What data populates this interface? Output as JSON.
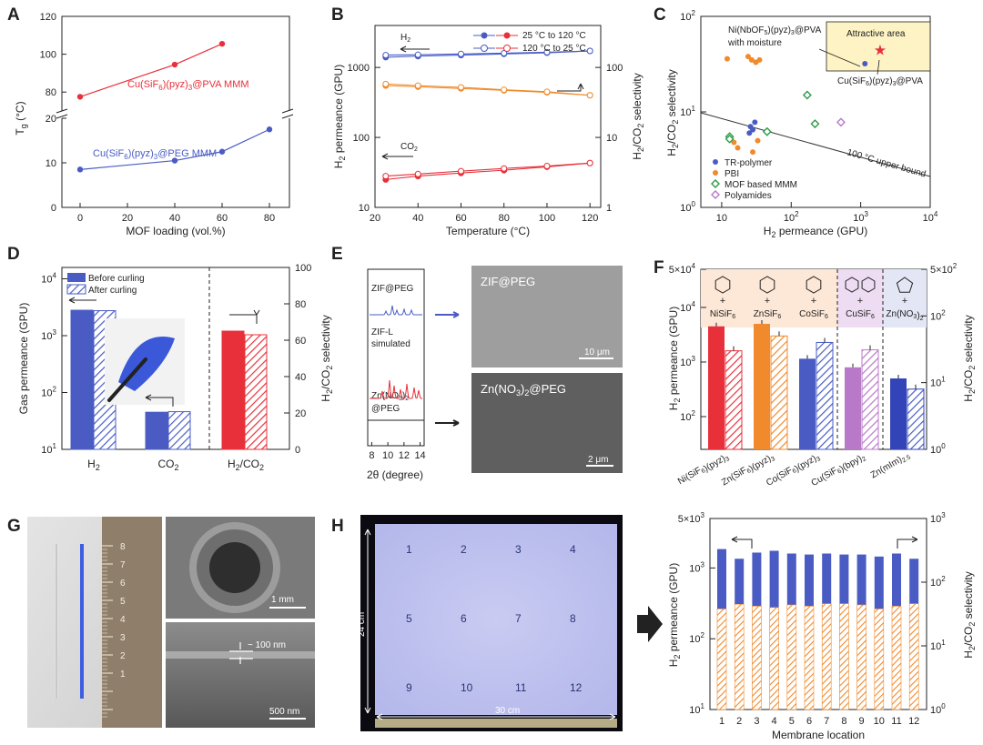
{
  "colors": {
    "blue": "#4a5cc4",
    "red": "#e8303a",
    "orange": "#f08a2c",
    "green": "#2e9b47",
    "purple": "#b87ac8",
    "panel_yellow": "#fdf3c4"
  },
  "panel_labels": [
    "A",
    "B",
    "C",
    "D",
    "E",
    "F",
    "G",
    "H"
  ],
  "chart_data": [
    {
      "id": "A",
      "type": "line",
      "xlabel": "MOF loading (vol.%)",
      "ylabel": "Tg (°C)",
      "x_ticks": [
        "0",
        "20",
        "40",
        "60",
        "80"
      ],
      "y_ticks_top": [
        "80",
        "100",
        "120"
      ],
      "y_ticks_bottom": [
        "0",
        "10",
        "20"
      ],
      "series": [
        {
          "name": "Cu(SiF6)(pyz)3@PVA MMM",
          "x": [
            0,
            40,
            60
          ],
          "y": [
            77.5,
            94.5,
            105.5
          ]
        },
        {
          "name": "Cu(SiF6)(pyz)3@PEG MMM",
          "x": [
            0,
            40,
            60,
            80
          ],
          "y": [
            8.5,
            10.5,
            12.5,
            17.5
          ]
        }
      ]
    },
    {
      "id": "B",
      "type": "line",
      "xlabel": "Temperature (°C)",
      "ylabel": "H2 permeance (GPU)",
      "ylabel2": "H2/CO2 selectivity",
      "x_ticks": [
        "20",
        "40",
        "60",
        "80",
        "100",
        "120"
      ],
      "y_ticks": [
        "10",
        "100",
        "1000"
      ],
      "y2_ticks": [
        "1",
        "10",
        "100"
      ],
      "legend": [
        "25 °C to 120 °C",
        "120 °C to 25 °C"
      ],
      "annotations": [
        "H2",
        "CO2"
      ],
      "series": [
        {
          "name": "H2 25→120",
          "x": [
            25,
            40,
            60,
            80,
            100,
            120
          ],
          "y": [
            1400,
            1450,
            1500,
            1560,
            1620,
            1720
          ]
        },
        {
          "name": "H2 120→25",
          "x": [
            25,
            40,
            60,
            80,
            100,
            120
          ],
          "y": [
            1500,
            1520,
            1560,
            1600,
            1650,
            1720
          ]
        },
        {
          "name": "CO2 25→120",
          "x": [
            25,
            40,
            60,
            80,
            100,
            120
          ],
          "y": [
            25,
            28,
            31,
            34,
            38,
            43
          ]
        },
        {
          "name": "CO2 120→25",
          "x": [
            25,
            40,
            60,
            80,
            100,
            120
          ],
          "y": [
            28,
            30,
            33,
            36,
            39,
            43
          ]
        },
        {
          "name": "Sel 25→120",
          "x": [
            25,
            40,
            60,
            80,
            100,
            120
          ],
          "y": [
            55,
            53,
            50,
            47,
            44,
            40
          ]
        },
        {
          "name": "Sel 120→25",
          "x": [
            25,
            40,
            60,
            80,
            100,
            120
          ],
          "y": [
            58,
            55,
            52,
            48,
            45,
            40
          ]
        }
      ]
    },
    {
      "id": "C",
      "type": "scatter",
      "xlabel": "H2 permeance (GPU)",
      "ylabel": "H2/CO2 selectivity",
      "x_ticks": [
        "10",
        "10^2",
        "10^3",
        "10^4"
      ],
      "y_ticks": [
        "10^0",
        "10^1",
        "10^2"
      ],
      "legend": [
        "TR-polymer",
        "PBI",
        "MOF based MMM",
        "Polyamides"
      ],
      "annotations": [
        "Attractive area",
        "Ni(NbOF5)(pyz)3@PVA with moisture",
        "Cu(SiF6)(pyz)3@PVA",
        "100 °C upper bound"
      ],
      "series": [
        {
          "name": "TR-polymer",
          "x": [
            25,
            28,
            30,
            26
          ],
          "y": [
            6,
            6.5,
            7.8,
            7
          ]
        },
        {
          "name": "PBI",
          "x": [
            12,
            24,
            27,
            31,
            35,
            15,
            17,
            28,
            33
          ],
          "y": [
            36,
            38,
            35,
            33,
            35,
            4.8,
            4.2,
            3.8,
            5
          ]
        },
        {
          "name": "MOF based MMM",
          "x": [
            13,
            13,
            45,
            170,
            220
          ],
          "y": [
            5.5,
            5.2,
            6.2,
            15,
            7.5
          ]
        },
        {
          "name": "Polyamides",
          "x": [
            520
          ],
          "y": [
            7.8
          ]
        },
        {
          "name": "Ni(NbOF5)(pyz)3@PVA",
          "x": [
            1150
          ],
          "y": [
            32
          ]
        },
        {
          "name": "Cu(SiF6)(pyz)3@PVA",
          "x": [
            1900
          ],
          "y": [
            44
          ]
        }
      ]
    },
    {
      "id": "D",
      "type": "bar",
      "ylabel": "Gas permeance (GPU)",
      "ylabel2": "H2/CO2 selectivity",
      "categories": [
        "H2",
        "CO2",
        "H2/CO2"
      ],
      "legend": [
        "Before curling",
        "After curling"
      ],
      "y_ticks": [
        "10^1",
        "10^2",
        "10^3",
        "10^4"
      ],
      "y2_ticks": [
        "0",
        "20",
        "40",
        "60",
        "80",
        "100"
      ],
      "series": [
        {
          "name": "Before curling",
          "values": [
            2800,
            45,
            65
          ]
        },
        {
          "name": "After curling",
          "values": [
            2750,
            46,
            63
          ]
        }
      ]
    },
    {
      "id": "F",
      "type": "bar",
      "ylabel": "H2 permeance (GPU)",
      "ylabel2": "H2/CO2 selectivity",
      "categories": [
        "Ni(SiF6)(pyz)3",
        "Zn(SiF6)(pyz)3",
        "Co(SiF6)(pyz)3",
        "Cu(SiF6)(bpy)2",
        "Zn(mIm)2.5"
      ],
      "linkers": [
        "NiSiF6",
        "ZnSiF6",
        "CoSiF6",
        "CuSiF6",
        "Zn(NO3)2"
      ],
      "y_ticks": [
        "10^2",
        "10^3",
        "10^4",
        "5×10^4"
      ],
      "y2_ticks": [
        "10^0",
        "10^1",
        "10^2",
        "5×10^2"
      ],
      "series": [
        {
          "name": "H2 permeance",
          "values": [
            4500,
            5000,
            1150,
            800,
            500
          ]
        },
        {
          "name": "H2/CO2 selectivity",
          "values": [
            30,
            50,
            40,
            31,
            8
          ]
        }
      ]
    },
    {
      "id": "H",
      "type": "bar",
      "xlabel": "Membrane location",
      "ylabel": "H2 permeance (GPU)",
      "ylabel2": "H2/CO2 selectivity",
      "categories": [
        "1",
        "2",
        "3",
        "4",
        "5",
        "6",
        "7",
        "8",
        "9",
        "10",
        "11",
        "12"
      ],
      "y_ticks": [
        "10^1",
        "10^2",
        "10^3",
        "5×10^3"
      ],
      "y2_ticks": [
        "10^0",
        "10^1",
        "10^2",
        "10^3"
      ],
      "series": [
        {
          "name": "H2 permeance",
          "values": [
            1850,
            1350,
            1650,
            1750,
            1600,
            1550,
            1600,
            1550,
            1550,
            1450,
            1600,
            1350
          ]
        },
        {
          "name": "H2/CO2 selectivity",
          "values": [
            38,
            45,
            42,
            40,
            44,
            42,
            46,
            46,
            44,
            38,
            42,
            46
          ]
        }
      ]
    }
  ],
  "panel_E": {
    "labels": [
      "ZIF@PEG",
      "ZIF-L simulated",
      "Zn(NO3)2 @PEG"
    ],
    "xlabel": "2θ (degree)",
    "x_ticks": [
      "8",
      "10",
      "12",
      "14"
    ],
    "images": [
      "ZIF@PEG",
      "Zn(NO3)2@PEG"
    ],
    "scalebars": [
      "10 μm",
      "2 μm"
    ]
  },
  "panel_G": {
    "scalebars": [
      "1 mm",
      "~ 100 nm",
      "500 nm"
    ]
  },
  "panel_H": {
    "grid_labels": [
      "1",
      "2",
      "3",
      "4",
      "5",
      "6",
      "7",
      "8",
      "9",
      "10",
      "11",
      "12"
    ],
    "dims": [
      "24 cm",
      "30 cm"
    ]
  }
}
